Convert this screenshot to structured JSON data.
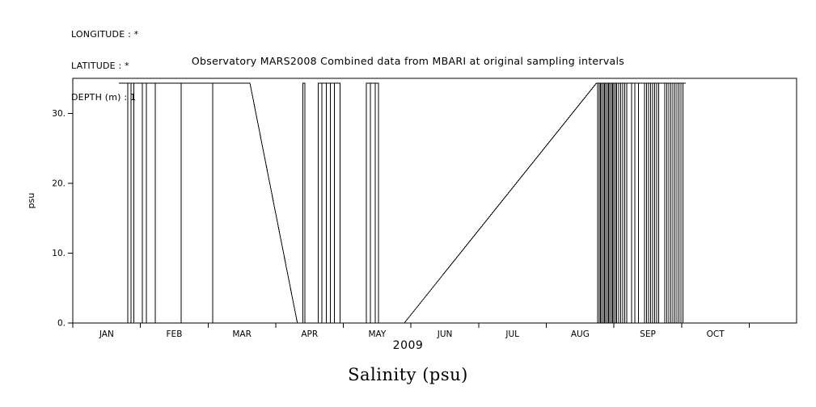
{
  "header": {
    "lines": [
      "LONGITUDE : *",
      "LATITUDE : *",
      "DEPTH (m) : 1"
    ]
  },
  "chart_data": {
    "type": "line",
    "title": "Observatory MARS2008 Combined data from MBARI at original sampling intervals",
    "xlabel": "2009",
    "ylabel": "psu",
    "caption": "Salinity (psu)",
    "x_unit": "months since 1 Jan 2009",
    "xlim": [
      0,
      10.7
    ],
    "ylim": [
      0,
      35
    ],
    "x_tick_positions": [
      0,
      1,
      2,
      3,
      4,
      5,
      6,
      7,
      8,
      9,
      10
    ],
    "x_label_positions": [
      0.5,
      1.5,
      2.5,
      3.5,
      4.5,
      5.5,
      6.5,
      7.5,
      8.5,
      9.5
    ],
    "x_tick_labels": [
      "JAN",
      "FEB",
      "MAR",
      "APR",
      "MAY",
      "JUN",
      "JUL",
      "AUG",
      "SEP",
      "OCT"
    ],
    "y_tick_values": [
      0,
      10,
      20,
      30
    ],
    "y_tick_labels": [
      "0.",
      "10.",
      "20.",
      "30."
    ],
    "line_color": "#000000",
    "background": "#ffffff",
    "grid": false,
    "legend": "none",
    "top_value": 34.3,
    "trace": [
      {
        "type": "flat",
        "x_start": 0.68,
        "x_end": 2.62,
        "y": 34.3,
        "spikes_to_zero": [
          0.81,
          0.86,
          0.9,
          1.03,
          1.09,
          1.22,
          1.6,
          2.07
        ]
      },
      {
        "type": "segment",
        "from": [
          2.62,
          34.3
        ],
        "to": [
          3.32,
          0
        ]
      },
      {
        "type": "segment",
        "from": [
          3.32,
          0
        ],
        "to": [
          3.4,
          0
        ]
      },
      {
        "type": "segment",
        "from": [
          3.4,
          0
        ],
        "to": [
          3.4,
          34.3
        ]
      },
      {
        "type": "flat",
        "x_start": 3.4,
        "x_end": 3.43,
        "y": 34.3,
        "spikes_to_zero": []
      },
      {
        "type": "segment",
        "from": [
          3.43,
          34.3
        ],
        "to": [
          3.43,
          0
        ]
      },
      {
        "type": "segment",
        "from": [
          3.43,
          0
        ],
        "to": [
          3.63,
          0
        ]
      },
      {
        "type": "segment",
        "from": [
          3.63,
          0
        ],
        "to": [
          3.63,
          34.3
        ]
      },
      {
        "type": "flat",
        "x_start": 3.63,
        "x_end": 3.95,
        "y": 34.3,
        "spikes_to_zero": [
          3.68,
          3.75,
          3.81,
          3.87
        ]
      },
      {
        "type": "segment",
        "from": [
          3.95,
          34.3
        ],
        "to": [
          3.95,
          0
        ]
      },
      {
        "type": "segment",
        "from": [
          3.95,
          0
        ],
        "to": [
          4.34,
          0
        ]
      },
      {
        "type": "segment",
        "from": [
          4.34,
          0
        ],
        "to": [
          4.34,
          34.3
        ]
      },
      {
        "type": "flat",
        "x_start": 4.34,
        "x_end": 4.52,
        "y": 34.3,
        "spikes_to_zero": [
          4.4,
          4.47
        ]
      },
      {
        "type": "segment",
        "from": [
          4.52,
          34.3
        ],
        "to": [
          4.52,
          0
        ]
      },
      {
        "type": "segment",
        "from": [
          4.52,
          0
        ],
        "to": [
          4.9,
          0
        ]
      },
      {
        "type": "segment",
        "from": [
          4.9,
          0
        ],
        "to": [
          7.74,
          34.3
        ]
      },
      {
        "type": "flat",
        "x_start": 7.74,
        "x_end": 9.06,
        "y": 34.3,
        "spikes_to_zero": [
          7.76,
          7.78,
          7.8,
          7.82,
          7.84,
          7.86,
          7.88,
          7.9,
          7.92,
          7.94,
          7.96,
          7.98,
          8.0,
          8.02,
          8.04,
          8.07,
          8.1,
          8.13,
          8.16,
          8.19,
          8.26,
          8.31,
          8.36,
          8.45,
          8.48,
          8.51,
          8.54,
          8.57,
          8.6,
          8.63,
          8.66,
          8.75,
          8.78,
          8.81,
          8.84,
          8.87,
          8.9,
          8.93,
          8.96,
          8.99,
          9.02
        ]
      }
    ]
  }
}
